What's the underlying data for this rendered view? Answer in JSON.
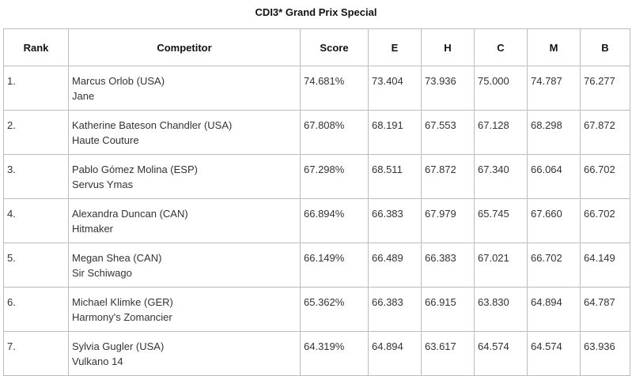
{
  "title": "CDI3* Grand Prix Special",
  "columns": [
    "Rank",
    "Competitor",
    "Score",
    "E",
    "H",
    "C",
    "M",
    "B"
  ],
  "rows": [
    {
      "rank": "1.",
      "rider": "Marcus Orlob (USA)",
      "horse": "Jane",
      "score": "74.681%",
      "e": "73.404",
      "h": "73.936",
      "c": "75.000",
      "m": "74.787",
      "b": "76.277"
    },
    {
      "rank": "2.",
      "rider": "Katherine Bateson Chandler (USA)",
      "horse": "Haute Couture",
      "score": "67.808%",
      "e": "68.191",
      "h": "67.553",
      "c": "67.128",
      "m": "68.298",
      "b": "67.872"
    },
    {
      "rank": "3.",
      "rider": "Pablo Gómez Molina (ESP)",
      "horse": "Servus Ymas",
      "score": "67.298%",
      "e": "68.511",
      "h": "67.872",
      "c": "67.340",
      "m": "66.064",
      "b": "66.702"
    },
    {
      "rank": "4.",
      "rider": "Alexandra Duncan (CAN)",
      "horse": "Hitmaker",
      "score": "66.894%",
      "e": "66.383",
      "h": "67.979",
      "c": "65.745",
      "m": "67.660",
      "b": "66.702"
    },
    {
      "rank": "5.",
      "rider": "Megan Shea (CAN)",
      "horse": "Sir Schiwago",
      "score": "66.149%",
      "e": "66.489",
      "h": "66.383",
      "c": "67.021",
      "m": "66.702",
      "b": "64.149"
    },
    {
      "rank": "6.",
      "rider": "Michael Klimke (GER)",
      "horse": "Harmony's Zomancier",
      "score": "65.362%",
      "e": "66.383",
      "h": "66.915",
      "c": "63.830",
      "m": "64.894",
      "b": "64.787"
    },
    {
      "rank": "7.",
      "rider": "Sylvia Gugler (USA)",
      "horse": "Vulkano 14",
      "score": "64.319%",
      "e": "64.894",
      "h": "63.617",
      "c": "64.574",
      "m": "64.574",
      "b": "63.936"
    }
  ]
}
